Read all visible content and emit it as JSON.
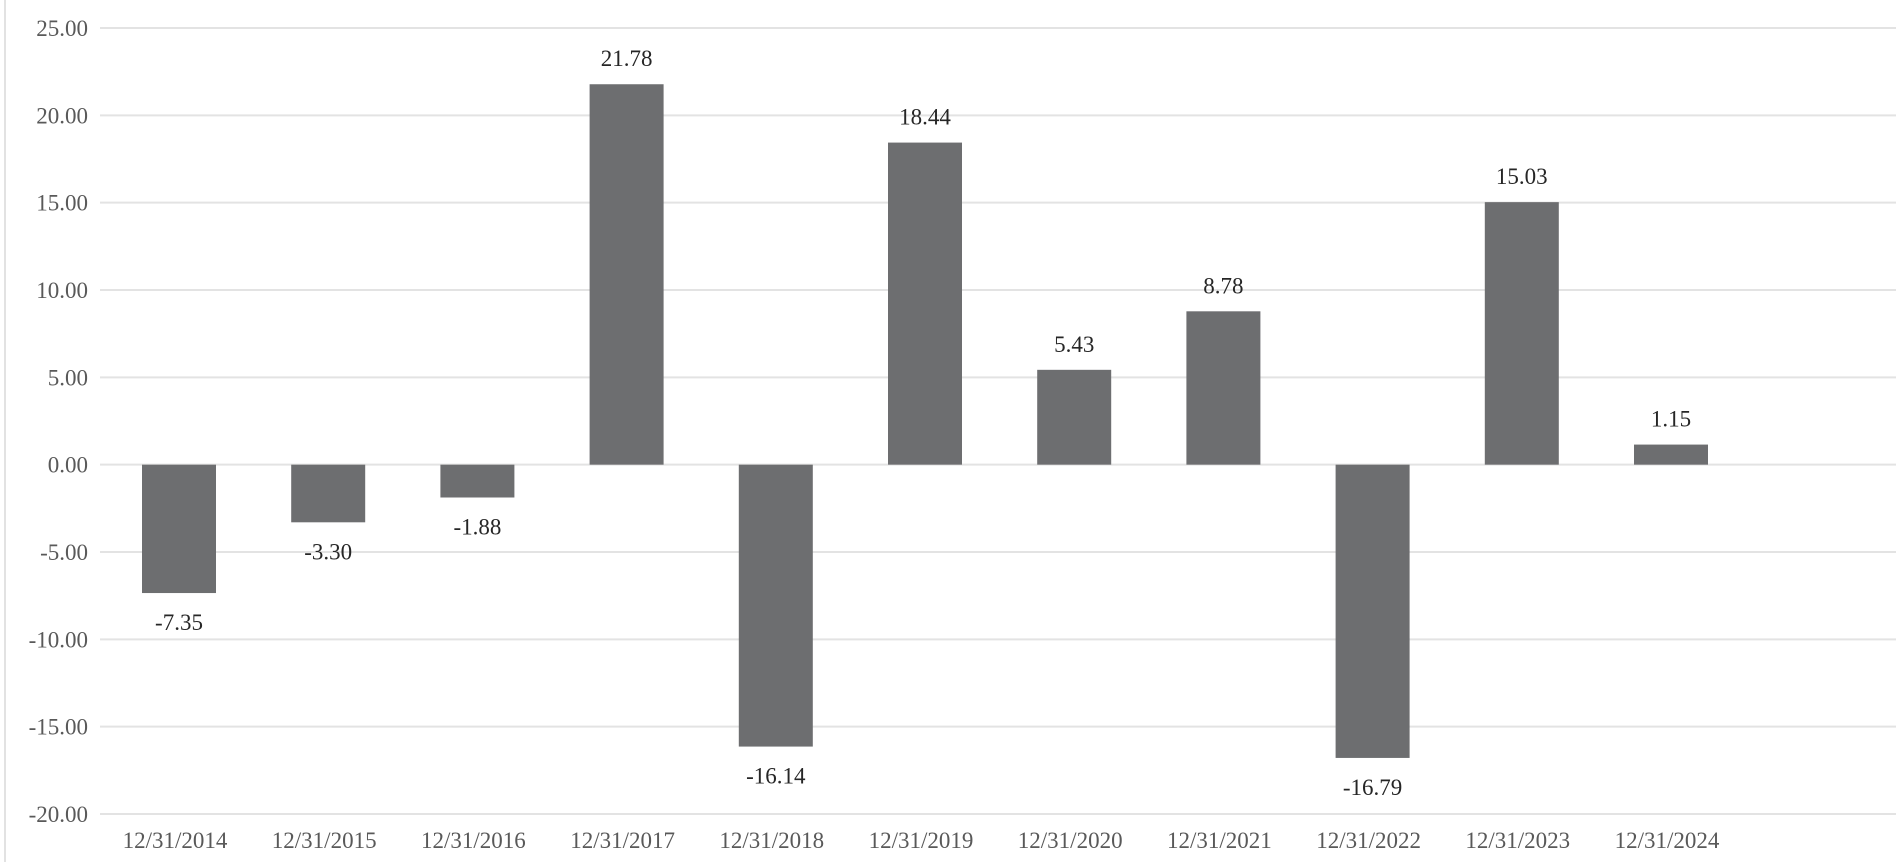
{
  "chart_data": {
    "type": "bar",
    "categories": [
      "12/31/2014",
      "12/31/2015",
      "12/31/2016",
      "12/31/2017",
      "12/31/2018",
      "12/31/2019",
      "12/31/2020",
      "12/31/2021",
      "12/31/2022",
      "12/31/2023",
      "12/31/2024"
    ],
    "series": [
      {
        "values": [
          -7.35,
          -3.3,
          -1.88,
          21.78,
          -16.14,
          18.44,
          5.43,
          8.78,
          -16.79,
          15.03,
          1.15
        ],
        "labels": [
          "-7.35",
          "-3.30",
          "-1.88",
          "21.78",
          "-16.14",
          "18.44",
          "5.43",
          "8.78",
          "-16.79",
          "15.03",
          "1.15"
        ]
      }
    ],
    "ylim": [
      -20,
      25
    ],
    "yticks": [
      25,
      20,
      15,
      10,
      5,
      0,
      -5,
      -10,
      -15,
      -20
    ],
    "ytick_labels": [
      "25.00",
      "20.00",
      "15.00",
      "10.00",
      "5.00",
      "0.00",
      "-5.00",
      "-10.00",
      "-15.00",
      "-20.00"
    ],
    "title": "",
    "xlabel": "",
    "ylabel": "",
    "grid": true,
    "legend": "none",
    "colors": {
      "bar": "#6d6e70",
      "grid": "#e3e3e3",
      "axis": "#d9d9d9"
    }
  }
}
